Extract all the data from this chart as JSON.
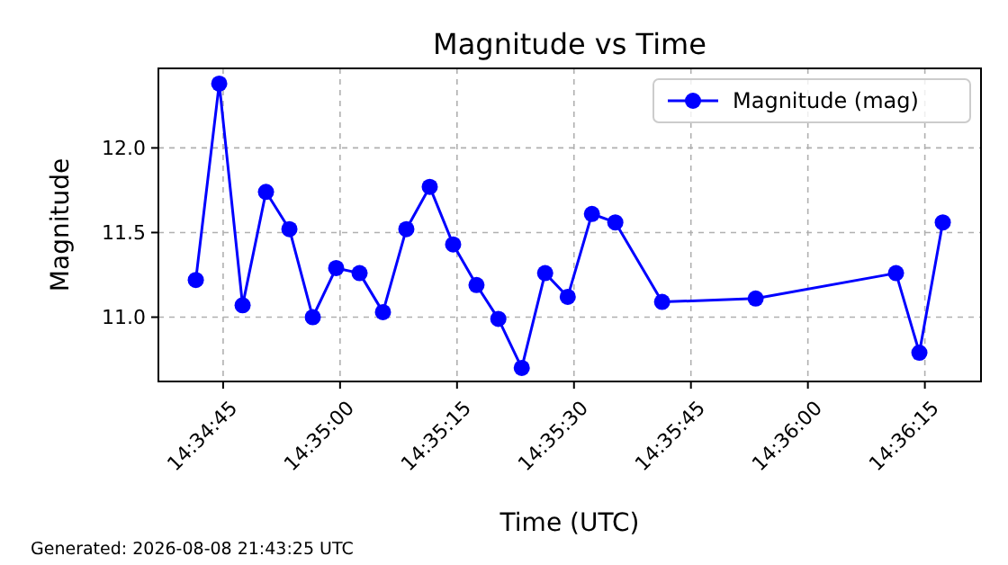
{
  "chart_data": {
    "type": "line",
    "title": "Magnitude vs Time",
    "xlabel": "Time (UTC)",
    "ylabel": "Magnitude",
    "x": [
      14.578194,
      14.579028,
      14.579861,
      14.580694,
      14.581528,
      14.582361,
      14.583194,
      14.584028,
      14.584861,
      14.585694,
      14.586528,
      14.587361,
      14.588194,
      14.588972,
      14.589806,
      14.590639,
      14.591444,
      14.592306,
      14.593139,
      14.594806,
      14.598139,
      14.603139,
      14.603972,
      14.604806
    ],
    "series": [
      {
        "name": "Magnitude (mag)",
        "color": "#0000ff",
        "values": [
          11.22,
          12.38,
          11.07,
          11.74,
          11.52,
          11.0,
          11.29,
          11.26,
          11.03,
          11.52,
          11.77,
          11.43,
          11.19,
          10.99,
          10.7,
          11.26,
          11.12,
          11.61,
          11.56,
          11.09,
          11.11,
          11.26,
          10.79,
          11.56
        ]
      }
    ],
    "xlim": [
      14.576861,
      14.606167
    ],
    "xticks": [
      {
        "value": 14.579167,
        "label": "14:34:45"
      },
      {
        "value": 14.583333,
        "label": "14:35:00"
      },
      {
        "value": 14.5875,
        "label": "14:35:15"
      },
      {
        "value": 14.591667,
        "label": "14:35:30"
      },
      {
        "value": 14.595833,
        "label": "14:35:45"
      },
      {
        "value": 14.6,
        "label": "14:36:00"
      },
      {
        "value": 14.604167,
        "label": "14:36:15"
      }
    ],
    "ylim": [
      10.62,
      12.47
    ],
    "yticks": [
      {
        "value": 11,
        "label": "11.0"
      },
      {
        "value": 11.5,
        "label": "11.5"
      },
      {
        "value": 12,
        "label": "12.0"
      }
    ],
    "grid": true,
    "legend": "top right",
    "marker": "circle",
    "line_style": "solid",
    "annotations": [
      "Generated: 2026-08-08 21:43:25 UTC"
    ]
  }
}
